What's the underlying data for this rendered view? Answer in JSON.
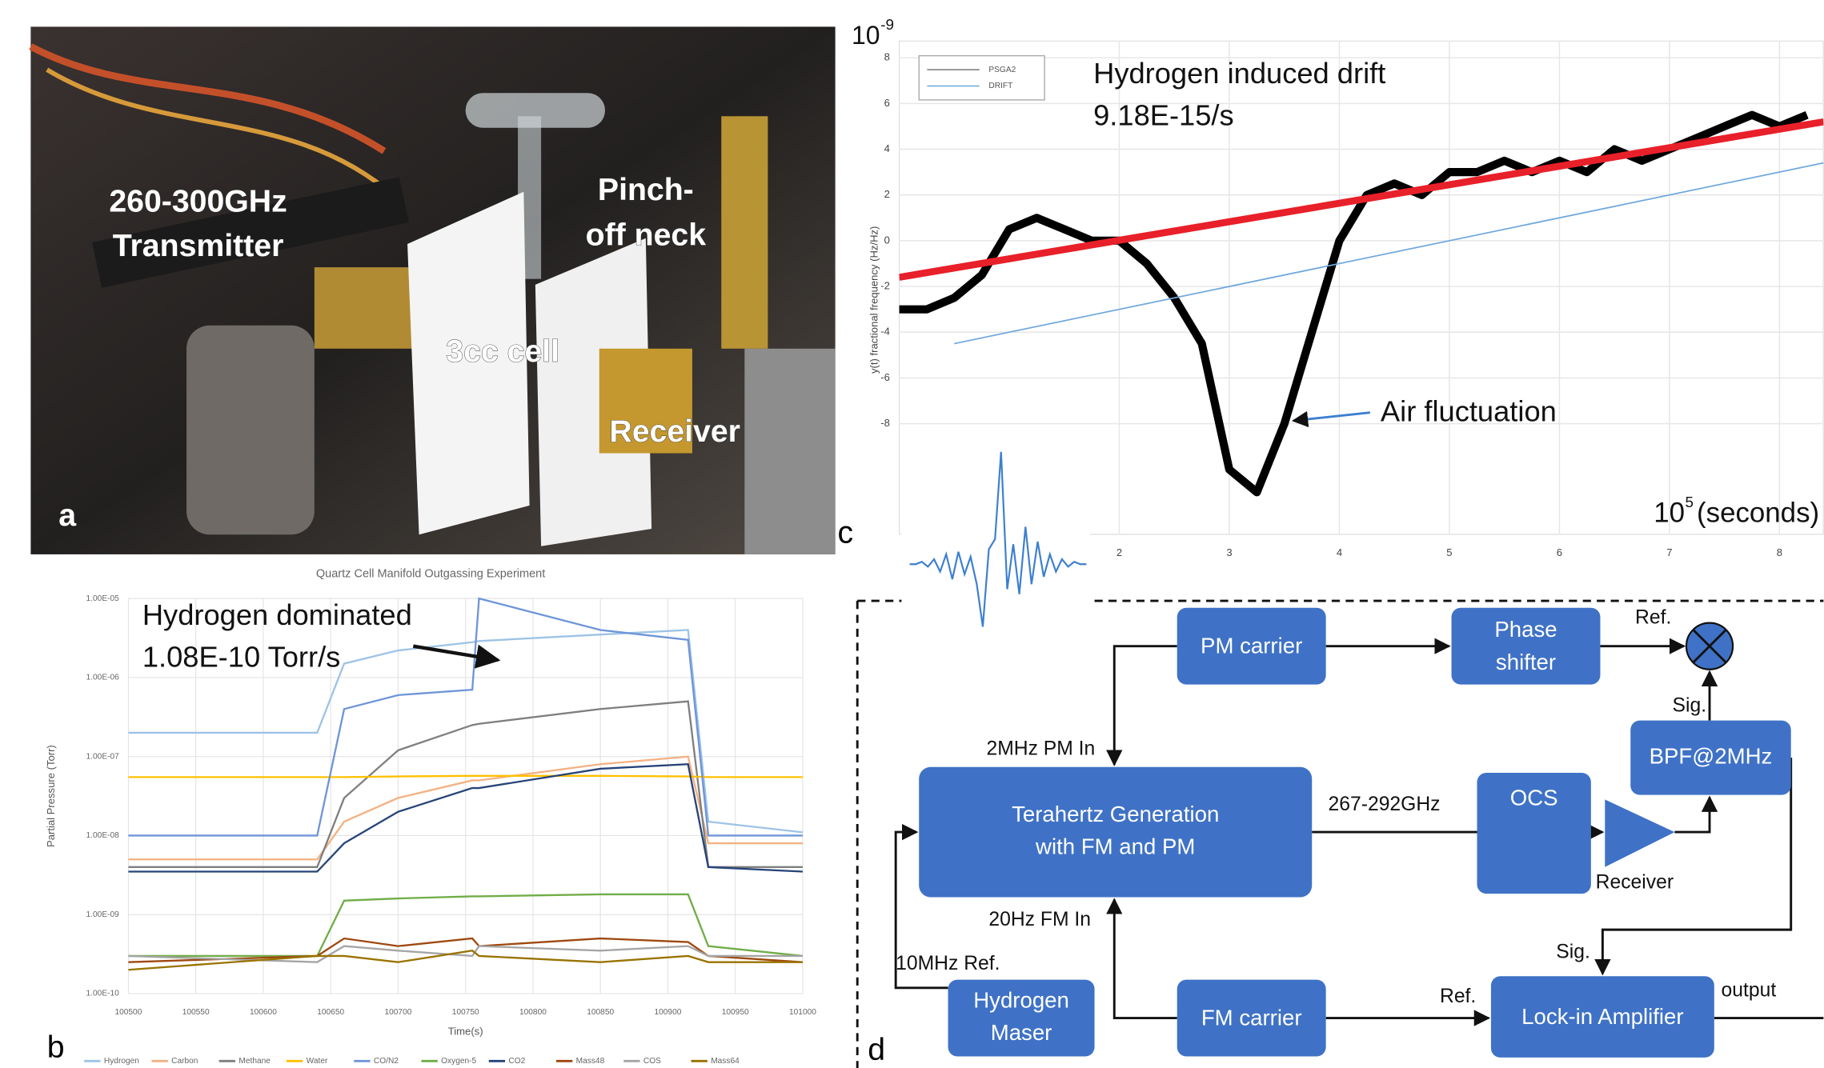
{
  "photo": {
    "label": "a",
    "callouts": [
      [
        "260-300GHz",
        "Transmitter"
      ],
      [
        "Pinch-",
        "off neck"
      ],
      [
        "3cc cell"
      ],
      [
        "Receiver"
      ]
    ]
  },
  "chart_data": [
    {
      "type": "line",
      "panel": "b",
      "title": "Quartz Cell Manifold Outgassing Experiment",
      "y_label": "Partial Pressure (Torr)",
      "x_label": "Time(s)",
      "log_y": true,
      "grid": true,
      "annotation": [
        "Hydrogen dominated",
        "1.08E-10 Torr/s"
      ],
      "xlim": [
        100500,
        101000
      ],
      "xticks": [
        100500,
        100550,
        100600,
        100650,
        100700,
        100750,
        100800,
        100850,
        100900,
        100950,
        101000
      ],
      "ylim": [
        1e-10,
        1e-05
      ],
      "yticks": [
        {
          "value": 1e-10,
          "label": "1.00E-10"
        },
        {
          "value": 1e-09,
          "label": "1.00E-09"
        },
        {
          "value": 1e-08,
          "label": "1.00E-08"
        },
        {
          "value": 1e-07,
          "label": "1.00E-07"
        },
        {
          "value": 1e-06,
          "label": "1.00E-06"
        },
        {
          "value": 1e-05,
          "label": "1.00E-05"
        }
      ],
      "x": [
        100500,
        100640,
        100660,
        100700,
        100755,
        100760,
        100850,
        100915,
        100930,
        101000
      ],
      "series": [
        {
          "name": "Hydrogen",
          "color": "#9dc3e6",
          "values": [
            2e-07,
            2e-07,
            1.5e-06,
            2.2e-06,
            2.8e-06,
            2.9e-06,
            3.5e-06,
            4e-06,
            1.5e-08,
            1.1e-08
          ]
        },
        {
          "name": "Carbon",
          "color": "#f4b183",
          "values": [
            5e-09,
            5e-09,
            1.5e-08,
            3e-08,
            5e-08,
            5e-08,
            8e-08,
            1e-07,
            8e-09,
            8e-09
          ]
        },
        {
          "name": "Methane",
          "color": "#7f7f7f",
          "values": [
            4e-09,
            4e-09,
            3e-08,
            1.2e-07,
            2.5e-07,
            2.6e-07,
            4e-07,
            5e-07,
            4e-09,
            4e-09
          ]
        },
        {
          "name": "Water",
          "color": "#ffc000",
          "values": [
            5.5e-08,
            5.5e-08,
            5.5e-08,
            5.6e-08,
            5.7e-08,
            5.7e-08,
            5.7e-08,
            5.6e-08,
            5.5e-08,
            5.5e-08
          ]
        },
        {
          "name": "CO/N2",
          "color": "#6f95d8",
          "values": [
            1e-08,
            1e-08,
            4e-07,
            6e-07,
            7e-07,
            1e-05,
            4e-06,
            3e-06,
            1e-08,
            1e-08
          ]
        },
        {
          "name": "Oxygen-5",
          "color": "#70ad47",
          "values": [
            3e-10,
            3e-10,
            1.5e-09,
            1.6e-09,
            1.7e-09,
            1.7e-09,
            1.8e-09,
            1.8e-09,
            4e-10,
            3e-10
          ]
        },
        {
          "name": "CO2",
          "color": "#264478",
          "values": [
            3.5e-09,
            3.5e-09,
            8e-09,
            2e-08,
            4e-08,
            4e-08,
            7e-08,
            8e-08,
            4e-09,
            3.5e-09
          ]
        },
        {
          "name": "Mass48",
          "color": "#9e480e",
          "values": [
            2.5e-10,
            3e-10,
            5e-10,
            4e-10,
            5e-10,
            4e-10,
            5e-10,
            4.5e-10,
            3e-10,
            2.5e-10
          ]
        },
        {
          "name": "COS",
          "color": "#a5a5a5",
          "values": [
            3e-10,
            2.5e-10,
            4e-10,
            3.5e-10,
            3e-10,
            4e-10,
            3.5e-10,
            4e-10,
            3e-10,
            3e-10
          ]
        },
        {
          "name": "Mass64",
          "color": "#997300",
          "values": [
            2e-10,
            3e-10,
            3e-10,
            2.5e-10,
            3.5e-10,
            3e-10,
            2.5e-10,
            3e-10,
            2.5e-10,
            2.5e-10
          ]
        }
      ]
    },
    {
      "type": "line",
      "panel": "c",
      "y_label": "y(t) fractional frequency (Hz/Hz)",
      "grid": true,
      "y_scale_label": {
        "base": "10",
        "exponent": "-9"
      },
      "x_scale_label": {
        "base": "10",
        "exponent": "5",
        "unit": "(seconds)"
      },
      "annotations": [
        "Hydrogen induced drift",
        "9.18E-15/s",
        "Air fluctuation"
      ],
      "xlim": [
        0,
        8.4
      ],
      "xticks": [
        2,
        3,
        4,
        5,
        6,
        7,
        8
      ],
      "ylim": [
        -13,
        9
      ],
      "yticks": [
        -8,
        -6,
        -4,
        -2,
        0,
        2,
        4,
        6,
        8
      ],
      "series": [
        {
          "name": "PSGA2",
          "color": "#000000",
          "x": [
            0,
            0.25,
            0.5,
            0.75,
            1,
            1.25,
            1.5,
            1.75,
            2,
            2.25,
            2.5,
            2.75,
            3,
            3.25,
            3.5,
            3.75,
            4,
            4.25,
            4.5,
            4.75,
            5,
            5.25,
            5.5,
            5.75,
            6,
            6.25,
            6.5,
            6.75,
            7,
            7.25,
            7.5,
            7.75,
            8,
            8.25
          ],
          "values": [
            -3,
            -3,
            -2.5,
            -1.5,
            0.5,
            1,
            0.5,
            0,
            0,
            -1,
            -2.5,
            -4.5,
            -10,
            -11,
            -8,
            -4,
            0,
            2,
            2.5,
            2,
            3,
            3,
            3.5,
            3,
            3.5,
            3,
            4,
            3.5,
            4,
            4.5,
            5,
            5.5,
            5,
            5.5
          ]
        },
        {
          "name": "DRIFT",
          "color": "#6fa8dc",
          "x": [
            0.5,
            8.4
          ],
          "values": [
            -4.5,
            3.4
          ]
        }
      ],
      "fit": {
        "color": "#e8202a",
        "x": [
          0,
          8.4
        ],
        "values": [
          -1.6,
          5.2
        ]
      },
      "inset": {
        "color": "#3d7fd0",
        "ylim": [
          -5,
          5
        ],
        "values": [
          0,
          0,
          0.1,
          -0.1,
          0.2,
          -0.3,
          0.4,
          -0.6,
          0.5,
          -0.4,
          0.3,
          -0.8,
          -2.5,
          0.6,
          1,
          4.5,
          -1,
          0.8,
          -1.2,
          1.5,
          -0.8,
          0.9,
          -0.5,
          0.4,
          -0.3,
          0.2,
          -0.1,
          0.1,
          0,
          0
        ]
      }
    }
  ],
  "diagram": {
    "label": "d",
    "nodes": [
      [
        "PM carrier"
      ],
      [
        "Phase",
        "shifter"
      ],
      [
        "Terahertz Generation",
        "with FM and PM"
      ],
      [
        "OCS"
      ],
      [
        "BPF@2MHz"
      ],
      [
        "Hydrogen",
        "Maser"
      ],
      [
        "FM carrier"
      ],
      [
        "Lock-in Amplifier"
      ]
    ],
    "edge_labels": [
      "Ref.",
      "Sig.",
      "2MHz PM In",
      "267-292GHz",
      "Receiver",
      "20Hz FM In",
      "Sig.",
      "10MHz Ref.",
      "Ref.",
      "output"
    ]
  }
}
